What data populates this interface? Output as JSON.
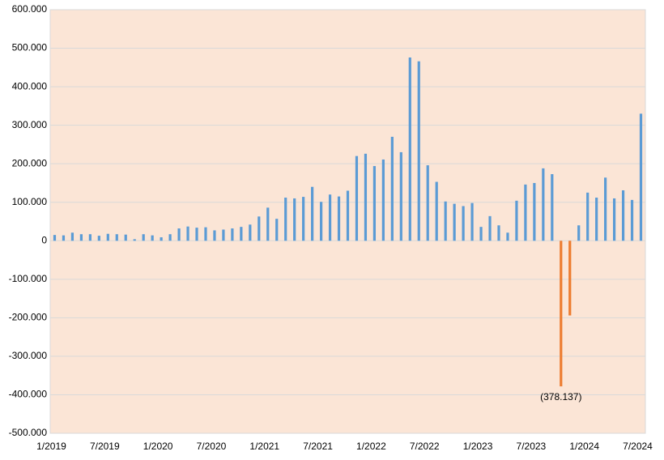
{
  "chart_data": {
    "type": "bar",
    "categories": [
      "1/2019",
      null,
      null,
      null,
      null,
      null,
      "7/2019",
      null,
      null,
      null,
      null,
      null,
      "1/2020",
      null,
      null,
      null,
      null,
      null,
      "7/2020",
      null,
      null,
      null,
      null,
      null,
      "1/2021",
      null,
      null,
      null,
      null,
      null,
      "7/2021",
      null,
      null,
      null,
      null,
      null,
      "1/2022",
      null,
      null,
      null,
      null,
      null,
      "7/2022",
      null,
      null,
      null,
      null,
      null,
      "1/2023",
      null,
      null,
      null,
      null,
      null,
      "7/2023",
      null,
      null,
      null,
      null,
      null,
      "1/2024",
      null,
      null,
      null,
      null,
      null,
      "7/2024"
    ],
    "values": [
      15000,
      14000,
      21000,
      17000,
      17000,
      13000,
      18000,
      17000,
      16000,
      4000,
      17000,
      14000,
      9000,
      17000,
      32000,
      37000,
      34000,
      35000,
      27000,
      29000,
      32000,
      36000,
      42000,
      63000,
      86000,
      57000,
      112000,
      110000,
      114000,
      140000,
      101000,
      120000,
      115000,
      130000,
      220000,
      226000,
      194000,
      211000,
      270000,
      230000,
      476000,
      466000,
      196000,
      153000,
      102000,
      96000,
      90000,
      98000,
      36000,
      64000,
      40000,
      21000,
      104000,
      146000,
      150000,
      188000,
      173000,
      -378137,
      -194000,
      40000,
      125000,
      112000,
      164000,
      110000,
      131000,
      106000,
      330000
    ],
    "value_labels": [
      null,
      null,
      null,
      null,
      null,
      null,
      null,
      null,
      null,
      null,
      null,
      null,
      null,
      null,
      null,
      null,
      null,
      null,
      null,
      null,
      null,
      null,
      null,
      null,
      null,
      null,
      null,
      null,
      null,
      null,
      null,
      null,
      null,
      null,
      null,
      null,
      null,
      null,
      null,
      null,
      null,
      null,
      null,
      null,
      null,
      null,
      null,
      null,
      null,
      null,
      null,
      null,
      null,
      null,
      null,
      null,
      null,
      "(378.137)",
      null,
      null,
      null,
      null,
      null,
      null,
      null,
      null,
      null
    ],
    "color": "#5b9bd5",
    "negative_color": "#ed7d31",
    "background": "#fbe5d6",
    "ylim": [
      -500000,
      600000
    ],
    "yticks": [
      {
        "value": -500000,
        "label": "-500.000"
      },
      {
        "value": -400000,
        "label": "-400.000"
      },
      {
        "value": -300000,
        "label": "-300.000"
      },
      {
        "value": -200000,
        "label": "-200.000"
      },
      {
        "value": -100000,
        "label": "-100.000"
      },
      0,
      {
        "value": 100000,
        "label": "100.000"
      },
      {
        "value": 200000,
        "label": "200.000"
      },
      {
        "value": 300000,
        "label": "300.000"
      },
      {
        "value": 400000,
        "label": "400.000"
      },
      {
        "value": 500000,
        "label": "500.000"
      },
      {
        "value": 600000,
        "label": "600.000"
      }
    ],
    "grid": true
  }
}
